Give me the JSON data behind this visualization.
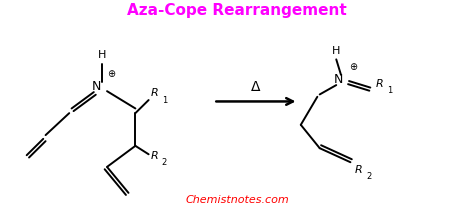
{
  "title": "Aza-Cope Rearrangement",
  "title_color": "#FF00FF",
  "title_fontsize": 11,
  "watermark": "Chemistnotes.com",
  "watermark_color": "#FF0000",
  "bg_color": "#FFFFFF",
  "line_color": "#000000",
  "arrow_color": "#000000",
  "delta_label": "Δ",
  "plus_symbol": "⊕",
  "figsize": [
    4.74,
    2.12
  ],
  "dpi": 100
}
